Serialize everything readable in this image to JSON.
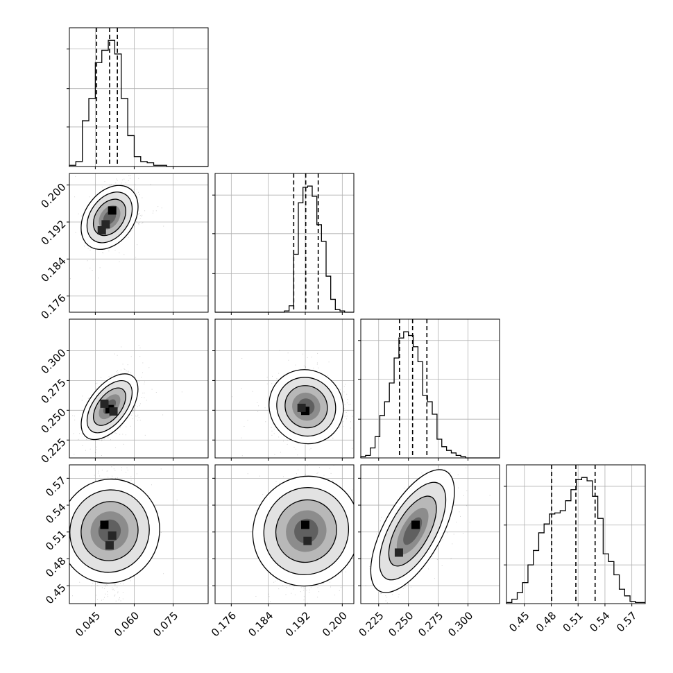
{
  "chart_data": {
    "type": "corner",
    "title": "",
    "grid": true,
    "parameters": [
      {
        "id": "p1",
        "label": "",
        "range": [
          0.035,
          0.0885
        ],
        "ticks": [
          0.045,
          0.06,
          0.075
        ],
        "tick_labels": [
          "0.045",
          "0.060",
          "0.075"
        ],
        "quantiles": [
          0.0455,
          0.0505,
          0.0535
        ],
        "hist": {
          "edges": [
            0.035,
            0.0375,
            0.04,
            0.0425,
            0.045,
            0.0475,
            0.05,
            0.0525,
            0.055,
            0.0575,
            0.06,
            0.0625,
            0.065,
            0.0675,
            0.07,
            0.0725,
            0.075,
            0.0775,
            0.08,
            0.0825,
            0.085,
            0.0885
          ],
          "counts": [
            1,
            4,
            37,
            55,
            84,
            94,
            102,
            91,
            55,
            25,
            8,
            4,
            3,
            1,
            1,
            0,
            0,
            0,
            0,
            0,
            0
          ]
        }
      },
      {
        "id": "p2",
        "label": "",
        "range": [
          0.1725,
          0.2025
        ],
        "ticks": [
          0.176,
          0.184,
          0.192,
          0.2
        ],
        "tick_labels": [
          "0.176",
          "0.184",
          "0.192",
          "0.200"
        ],
        "quantiles": [
          0.1895,
          0.1921,
          0.1948
        ],
        "hist": {
          "edges": [
            0.1725,
            0.1735,
            0.1745,
            0.1755,
            0.1765,
            0.1775,
            0.1785,
            0.1795,
            0.1805,
            0.1815,
            0.1825,
            0.1835,
            0.1845,
            0.1855,
            0.1865,
            0.1875,
            0.1885,
            0.1895,
            0.1905,
            0.1915,
            0.1925,
            0.1935,
            0.1945,
            0.1955,
            0.1965,
            0.1975,
            0.1985,
            0.1995,
            0.2005,
            0.2015,
            0.2025
          ],
          "counts": [
            0,
            0,
            0,
            0,
            0,
            0,
            0,
            0,
            0,
            0,
            0,
            0,
            0,
            0,
            0,
            1,
            5,
            45,
            85,
            97,
            98,
            90,
            68,
            55,
            28,
            10,
            2,
            1,
            0,
            0
          ]
        }
      },
      {
        "id": "p3",
        "label": "",
        "range": [
          0.21,
          0.3265
        ],
        "ticks": [
          0.225,
          0.25,
          0.275,
          0.3
        ],
        "tick_labels": [
          "0.225",
          "0.250",
          "0.275",
          "0.300"
        ],
        "quantiles": [
          0.2425,
          0.2535,
          0.2655
        ],
        "hist": {
          "edges": [
            0.21,
            0.214,
            0.218,
            0.222,
            0.226,
            0.23,
            0.234,
            0.238,
            0.242,
            0.246,
            0.25,
            0.254,
            0.258,
            0.262,
            0.266,
            0.27,
            0.274,
            0.278,
            0.282,
            0.286,
            0.29,
            0.294,
            0.298,
            0.302,
            0.306,
            0.31,
            0.314,
            0.3265
          ],
          "counts": [
            1,
            2,
            8,
            17,
            34,
            45,
            60,
            80,
            96,
            101,
            98,
            89,
            77,
            50,
            45,
            35,
            15,
            9,
            6,
            4,
            2,
            1,
            0,
            0,
            0,
            0,
            0
          ]
        }
      },
      {
        "id": "p4",
        "label": "",
        "range": [
          0.43,
          0.585
        ],
        "ticks": [
          0.45,
          0.48,
          0.51,
          0.54,
          0.57
        ],
        "tick_labels": [
          "0.45",
          "0.48",
          "0.51",
          "0.54",
          "0.57"
        ],
        "quantiles": [
          0.4805,
          0.5075,
          0.529
        ],
        "hist": {
          "edges": [
            0.43,
            0.436,
            0.442,
            0.448,
            0.454,
            0.46,
            0.466,
            0.472,
            0.478,
            0.484,
            0.49,
            0.496,
            0.502,
            0.508,
            0.514,
            0.52,
            0.526,
            0.532,
            0.538,
            0.544,
            0.55,
            0.556,
            0.562,
            0.568,
            0.574,
            0.585
          ],
          "counts": [
            1,
            4,
            10,
            19,
            35,
            48,
            64,
            72,
            81,
            82,
            84,
            93,
            103,
            112,
            114,
            111,
            97,
            77,
            45,
            38,
            26,
            13,
            7,
            2,
            1
          ]
        }
      }
    ],
    "pairs": [
      {
        "x": "p1",
        "y": "p2",
        "mean": [
          0.0505,
          0.193
        ],
        "sd": [
          0.0033,
          0.0026
        ],
        "rho": 0.35,
        "peaks": [
          [
            0.0515,
            0.1945
          ],
          [
            0.049,
            0.1915
          ],
          [
            0.0475,
            0.1902
          ]
        ]
      },
      {
        "x": "p1",
        "y": "p3",
        "mean": [
          0.0505,
          0.253
        ],
        "sd": [
          0.0035,
          0.01
        ],
        "rho": 0.55,
        "peaks": [
          [
            0.0505,
            0.251
          ],
          [
            0.0485,
            0.2555
          ],
          [
            0.052,
            0.249
          ]
        ]
      },
      {
        "x": "p2",
        "y": "p3",
        "mean": [
          0.1922,
          0.253
        ],
        "sd": [
          0.0027,
          0.011
        ],
        "rho": -0.05,
        "peaks": [
          [
            0.192,
            0.2495
          ],
          [
            0.1912,
            0.252
          ]
        ]
      },
      {
        "x": "p1",
        "y": "p4",
        "mean": [
          0.0505,
          0.511
        ],
        "sd": [
          0.0034,
          0.026
        ],
        "rho": 0.05,
        "peaks": [
          [
            0.0485,
            0.518
          ],
          [
            0.0515,
            0.506
          ],
          [
            0.0505,
            0.495
          ]
        ]
      },
      {
        "x": "p2",
        "y": "p4",
        "mean": [
          0.1922,
          0.511
        ],
        "sd": [
          0.0027,
          0.026
        ],
        "rho": 0.05,
        "peaks": [
          [
            0.192,
            0.518
          ],
          [
            0.1925,
            0.5
          ]
        ]
      },
      {
        "x": "p3",
        "y": "p4",
        "mean": [
          0.2535,
          0.511
        ],
        "sd": [
          0.0105,
          0.025
        ],
        "rho": 0.7,
        "peaks": [
          [
            0.256,
            0.518
          ],
          [
            0.242,
            0.487
          ]
        ]
      }
    ],
    "contour_levels": [
      0.39,
      0.86,
      0.99
    ]
  }
}
